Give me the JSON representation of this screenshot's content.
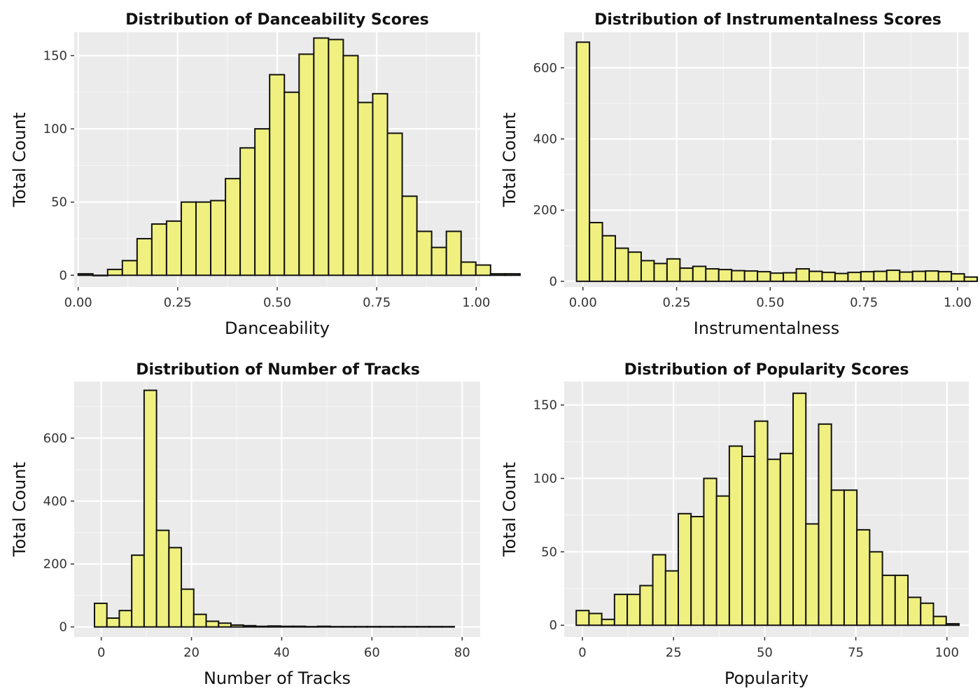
{
  "colors": {
    "panel_bg": "#EBEBEB",
    "grid_major": "#FFFFFF",
    "grid_minor": "#F5F5F5",
    "bar_fill": "#F0F080",
    "bar_stroke": "#111111"
  },
  "chart_data": [
    {
      "type": "bar",
      "title": "Distribution of Danceability Scores",
      "xlabel": "Danceability",
      "ylabel": "Total Count",
      "xlim": [
        -0.01,
        1.01
      ],
      "ylim": [
        -8,
        166
      ],
      "xticks": [
        0,
        0.25,
        0.5,
        0.75,
        1.0
      ],
      "xtick_labels": [
        "0.00",
        "0.25",
        "0.50",
        "0.75",
        "1.00"
      ],
      "yticks": [
        0,
        50,
        100,
        150
      ],
      "ytick_labels": [
        "0",
        "50",
        "100",
        "150"
      ],
      "bin_start": 0.0,
      "bin_width": 0.037,
      "values": [
        1,
        0,
        4,
        10,
        25,
        35,
        37,
        50,
        50,
        51,
        66,
        87,
        100,
        137,
        125,
        151,
        162,
        161,
        150,
        118,
        124,
        97,
        54,
        30,
        19,
        30,
        9,
        7,
        1,
        1
      ]
    },
    {
      "type": "bar",
      "title": "Distribution of Instrumentalness Scores",
      "xlabel": "Instrumentalness",
      "ylabel": "Total Count",
      "xlim": [
        -0.05,
        1.03
      ],
      "ylim": [
        -16,
        700
      ],
      "xticks": [
        0,
        0.25,
        0.5,
        0.75,
        1.0
      ],
      "xtick_labels": [
        "0.00",
        "0.25",
        "0.50",
        "0.75",
        "1.00"
      ],
      "yticks": [
        0,
        200,
        400,
        600
      ],
      "ytick_labels": [
        "0",
        "200",
        "400",
        "600"
      ],
      "bin_start": -0.017,
      "bin_width": 0.0345,
      "values": [
        672,
        165,
        128,
        93,
        82,
        58,
        50,
        63,
        37,
        42,
        35,
        33,
        30,
        29,
        27,
        23,
        24,
        35,
        28,
        25,
        22,
        25,
        27,
        28,
        31,
        26,
        28,
        29,
        27,
        21,
        12
      ]
    },
    {
      "type": "bar",
      "title": "Distribution of Number of Tracks",
      "xlabel": "Number of Tracks",
      "ylabel": "Total Count",
      "xlim": [
        -6,
        84
      ],
      "ylim": [
        -32,
        780
      ],
      "xticks": [
        0,
        20,
        40,
        60,
        80
      ],
      "xtick_labels": [
        "0",
        "20",
        "40",
        "60",
        "80"
      ],
      "yticks": [
        0,
        200,
        400,
        600
      ],
      "ytick_labels": [
        "0",
        "200",
        "400",
        "600"
      ],
      "bin_start": -1.5,
      "bin_width": 2.75,
      "values": [
        75,
        28,
        52,
        228,
        752,
        307,
        252,
        120,
        40,
        18,
        12,
        6,
        4,
        2,
        3,
        2,
        2,
        1,
        2,
        1,
        1,
        1,
        1,
        1,
        1,
        1,
        1,
        1,
        1
      ]
    },
    {
      "type": "bar",
      "title": "Distribution of Popularity Scores",
      "xlabel": "Popularity",
      "ylabel": "Total Count",
      "xlim": [
        -5,
        106
      ],
      "ylim": [
        -8,
        166
      ],
      "xticks": [
        0,
        25,
        50,
        75,
        100
      ],
      "xtick_labels": [
        "0",
        "25",
        "50",
        "75",
        "100"
      ],
      "yticks": [
        0,
        50,
        100,
        150
      ],
      "ytick_labels": [
        "0",
        "50",
        "100",
        "150"
      ],
      "bin_start": -1.7,
      "bin_width": 3.5,
      "values": [
        10,
        8,
        4,
        21,
        21,
        27,
        48,
        37,
        76,
        74,
        100,
        88,
        122,
        115,
        139,
        113,
        117,
        158,
        69,
        137,
        92,
        92,
        65,
        50,
        34,
        34,
        19,
        15,
        6,
        1
      ]
    }
  ]
}
